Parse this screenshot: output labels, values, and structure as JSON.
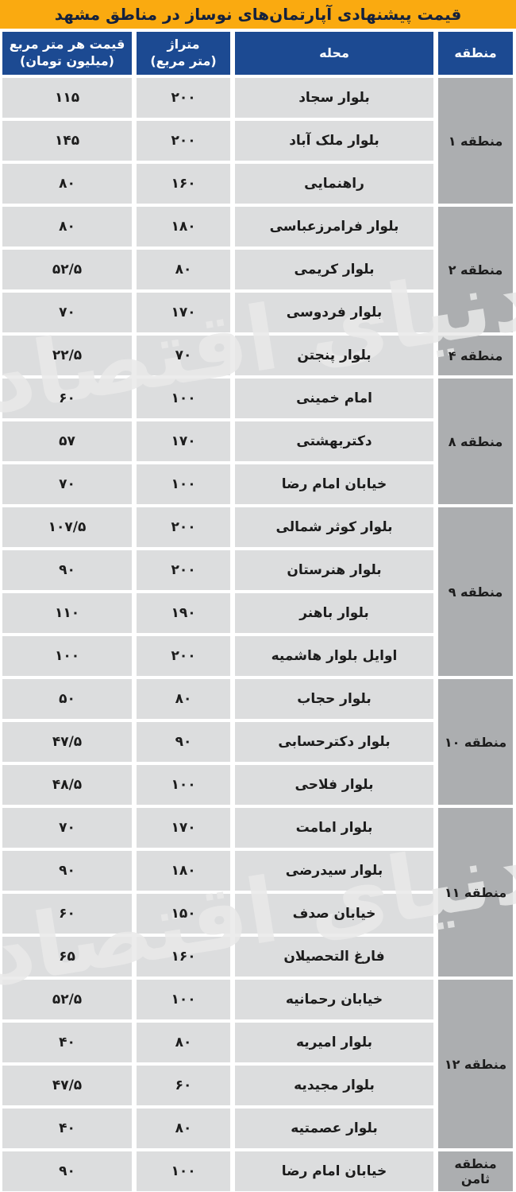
{
  "title": "قیمت پیشنهادی آپارتمان‌های نوساز در مناطق مشهد",
  "watermark": "دنیای اقتصاد",
  "colors": {
    "page_bg": "#FFFFFF",
    "title_bar": "#FAAA10",
    "title_text": "#14213D",
    "header_bg": "#1C4A92",
    "header_text": "#FFFFFF",
    "row_bg": "#DCDDDE",
    "region_bg": "#ACAEB0",
    "cell_text": "#1C1C1C",
    "watermark": "#E9E9E9"
  },
  "table": {
    "headers": {
      "price_line1": "قیمت هر متر مربع",
      "price_line2": "(میلیون تومان)",
      "area_line1": "متراژ",
      "area_line2": "(متر مربع)",
      "neighborhood": "محله",
      "region": "منطقه"
    }
  },
  "chart_data": {
    "type": "table",
    "title": "قیمت پیشنهادی آپارتمان‌های نوساز در مناطق مشهد",
    "columns": [
      "منطقه",
      "محله",
      "متراژ (متر مربع)",
      "قیمت هر متر مربع (میلیون تومان)"
    ],
    "groups": [
      {
        "region": "منطقه ۱",
        "rows": [
          {
            "neighborhood": "بلوار سجاد",
            "area": "۲۰۰",
            "price": "۱۱۵"
          },
          {
            "neighborhood": "بلوار ملک آباد",
            "area": "۲۰۰",
            "price": "۱۴۵"
          },
          {
            "neighborhood": "راهنمایی",
            "area": "۱۶۰",
            "price": "۸۰"
          }
        ]
      },
      {
        "region": "منطقه ۲",
        "rows": [
          {
            "neighborhood": "بلوار فرامرزعباسی",
            "area": "۱۸۰",
            "price": "۸۰"
          },
          {
            "neighborhood": "بلوار کریمی",
            "area": "۸۰",
            "price": "۵۲/۵"
          },
          {
            "neighborhood": "بلوار فردوسی",
            "area": "۱۷۰",
            "price": "۷۰"
          }
        ]
      },
      {
        "region": "منطقه ۴",
        "rows": [
          {
            "neighborhood": "بلوار پنجتن",
            "area": "۷۰",
            "price": "۲۲/۵"
          }
        ]
      },
      {
        "region": "منطقه ۸",
        "rows": [
          {
            "neighborhood": "امام خمینی",
            "area": "۱۰۰",
            "price": "۶۰"
          },
          {
            "neighborhood": "دکتربهشتی",
            "area": "۱۷۰",
            "price": "۵۷"
          },
          {
            "neighborhood": "خیابان امام رضا",
            "area": "۱۰۰",
            "price": "۷۰"
          }
        ]
      },
      {
        "region": "منطقه ۹",
        "rows": [
          {
            "neighborhood": "بلوار کوثر شمالی",
            "area": "۲۰۰",
            "price": "۱۰۷/۵"
          },
          {
            "neighborhood": "بلوار هنرستان",
            "area": "۲۰۰",
            "price": "۹۰"
          },
          {
            "neighborhood": "بلوار باهنر",
            "area": "۱۹۰",
            "price": "۱۱۰"
          },
          {
            "neighborhood": "اوایل بلوار هاشمیه",
            "area": "۲۰۰",
            "price": "۱۰۰"
          }
        ]
      },
      {
        "region": "منطقه ۱۰",
        "rows": [
          {
            "neighborhood": "بلوار حجاب",
            "area": "۸۰",
            "price": "۵۰"
          },
          {
            "neighborhood": "بلوار دکترحسابی",
            "area": "۹۰",
            "price": "۴۷/۵"
          },
          {
            "neighborhood": "بلوار فلاحی",
            "area": "۱۰۰",
            "price": "۴۸/۵"
          }
        ]
      },
      {
        "region": "منطقه ۱۱",
        "rows": [
          {
            "neighborhood": "بلوار امامت",
            "area": "۱۷۰",
            "price": "۷۰"
          },
          {
            "neighborhood": "بلوار سیدرضی",
            "area": "۱۸۰",
            "price": "۹۰"
          },
          {
            "neighborhood": "خیابان صدف",
            "area": "۱۵۰",
            "price": "۶۰"
          },
          {
            "neighborhood": "فارغ التحصیلان",
            "area": "۱۶۰",
            "price": "۶۵"
          }
        ]
      },
      {
        "region": "منطقه ۱۲",
        "rows": [
          {
            "neighborhood": "خیابان رحمانیه",
            "area": "۱۰۰",
            "price": "۵۲/۵"
          },
          {
            "neighborhood": "بلوار امیریه",
            "area": "۸۰",
            "price": "۴۰"
          },
          {
            "neighborhood": "بلوار مجیدیه",
            "area": "۶۰",
            "price": "۴۷/۵"
          },
          {
            "neighborhood": "بلوار عصمتیه",
            "area": "۸۰",
            "price": "۴۰"
          }
        ]
      },
      {
        "region": "منطقه ثامن",
        "rows": [
          {
            "neighborhood": "خیابان امام رضا",
            "area": "۱۰۰",
            "price": "۹۰"
          }
        ]
      }
    ]
  }
}
